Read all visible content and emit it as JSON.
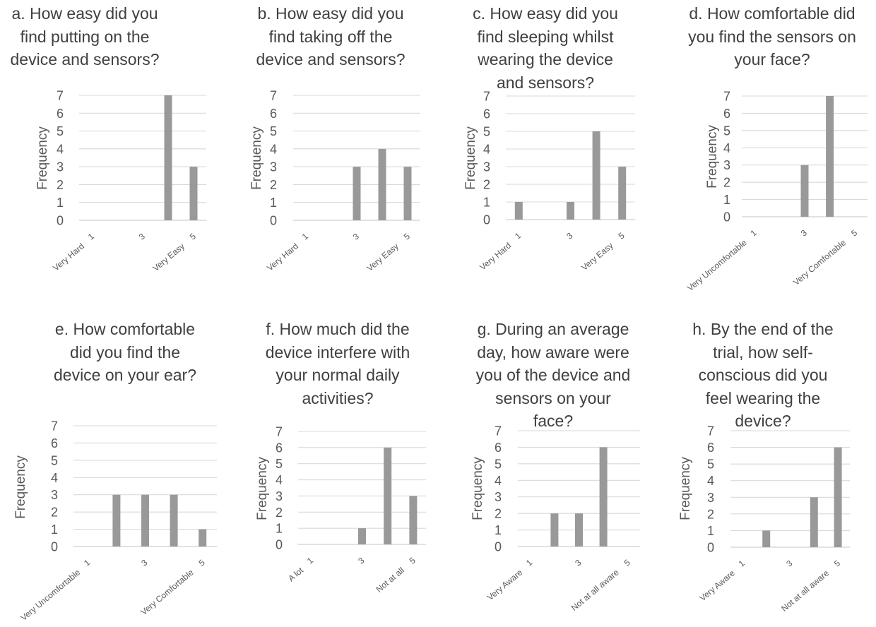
{
  "y_axis_label": "Frequency",
  "bar_color": "#999999",
  "grid_color": "#d9d9d9",
  "chart_data": [
    {
      "type": "bar",
      "title": "a. How easy did you find putting on the device and sensors?",
      "categories": [
        "1",
        "2",
        "3",
        "4",
        "5"
      ],
      "tick_labels": [
        "1",
        "",
        "3",
        "",
        "5"
      ],
      "scale_labels": {
        "low": "Very Hard",
        "high": "Very Easy"
      },
      "values": [
        0,
        0,
        0,
        7,
        3
      ],
      "yticks": [
        0,
        1,
        2,
        3,
        4,
        5,
        6,
        7
      ],
      "ylim": [
        0,
        7
      ],
      "ylabel": "Frequency"
    },
    {
      "type": "bar",
      "title": "b. How easy did you find taking off the device and sensors?",
      "categories": [
        "1",
        "2",
        "3",
        "4",
        "5"
      ],
      "tick_labels": [
        "1",
        "",
        "3",
        "",
        "5"
      ],
      "scale_labels": {
        "low": "Very Hard",
        "high": "Very Easy"
      },
      "values": [
        0,
        0,
        3,
        4,
        3
      ],
      "yticks": [
        0,
        1,
        2,
        3,
        4,
        5,
        6,
        7
      ],
      "ylim": [
        0,
        7
      ],
      "ylabel": "Frequency"
    },
    {
      "type": "bar",
      "title": "c. How easy did you find sleeping whilst wearing the device and sensors?",
      "categories": [
        "1",
        "2",
        "3",
        "4",
        "5"
      ],
      "tick_labels": [
        "1",
        "",
        "3",
        "",
        "5"
      ],
      "scale_labels": {
        "low": "Very Hard",
        "high": "Very Easy"
      },
      "values": [
        1,
        0,
        1,
        5,
        3
      ],
      "yticks": [
        0,
        1,
        2,
        3,
        4,
        5,
        6,
        7
      ],
      "ylim": [
        0,
        7
      ],
      "ylabel": "Frequency"
    },
    {
      "type": "bar",
      "title": "d. How comfortable did you find the sensors on your face?",
      "categories": [
        "1",
        "2",
        "3",
        "4",
        "5"
      ],
      "tick_labels": [
        "1",
        "",
        "3",
        "",
        "5"
      ],
      "scale_labels": {
        "low": "Very Uncomfortable",
        "high": "Very Comfortable"
      },
      "values": [
        0,
        0,
        3,
        7,
        0
      ],
      "yticks": [
        0,
        1,
        2,
        3,
        4,
        5,
        6,
        7
      ],
      "ylim": [
        0,
        7
      ],
      "ylabel": "Frequency"
    },
    {
      "type": "bar",
      "title": "e. How comfortable did you find the device on your ear?",
      "categories": [
        "1",
        "2",
        "3",
        "4",
        "5"
      ],
      "tick_labels": [
        "1",
        "",
        "3",
        "",
        "5"
      ],
      "scale_labels": {
        "low": "Very Uncomfortable",
        "high": "Very Comfortable"
      },
      "values": [
        0,
        3,
        3,
        3,
        1
      ],
      "yticks": [
        0,
        1,
        2,
        3,
        4,
        5,
        6,
        7
      ],
      "ylim": [
        0,
        7
      ],
      "ylabel": "Frequency"
    },
    {
      "type": "bar",
      "title": "f. How much did the device interfere with your normal daily activities?",
      "categories": [
        "1",
        "2",
        "3",
        "4",
        "5"
      ],
      "tick_labels": [
        "1",
        "",
        "3",
        "",
        "5"
      ],
      "scale_labels": {
        "low": "A lot",
        "high": "Not at all"
      },
      "values": [
        0,
        0,
        1,
        6,
        3
      ],
      "yticks": [
        0,
        1,
        2,
        3,
        4,
        5,
        6,
        7
      ],
      "ylim": [
        0,
        7
      ],
      "ylabel": "Frequency"
    },
    {
      "type": "bar",
      "title": "g. During an average day, how aware were you of the device and sensors on your face?",
      "categories": [
        "1",
        "2",
        "3",
        "4",
        "5"
      ],
      "tick_labels": [
        "1",
        "",
        "3",
        "",
        "5"
      ],
      "scale_labels": {
        "low": "Very Aware",
        "high": "Not at all aware"
      },
      "values": [
        0,
        2,
        2,
        6,
        0
      ],
      "yticks": [
        0,
        1,
        2,
        3,
        4,
        5,
        6,
        7
      ],
      "ylim": [
        0,
        7
      ],
      "ylabel": "Frequency"
    },
    {
      "type": "bar",
      "title": "h. By the end of the trial, how self-conscious did you feel wearing the device?",
      "categories": [
        "1",
        "2",
        "3",
        "4",
        "5"
      ],
      "tick_labels": [
        "1",
        "",
        "3",
        "",
        "5"
      ],
      "scale_labels": {
        "low": "Very Aware",
        "high": "Not at all aware"
      },
      "values": [
        0,
        1,
        0,
        3,
        6
      ],
      "yticks": [
        0,
        1,
        2,
        3,
        4,
        5,
        6,
        7
      ],
      "ylim": [
        0,
        7
      ],
      "ylabel": "Frequency"
    }
  ]
}
